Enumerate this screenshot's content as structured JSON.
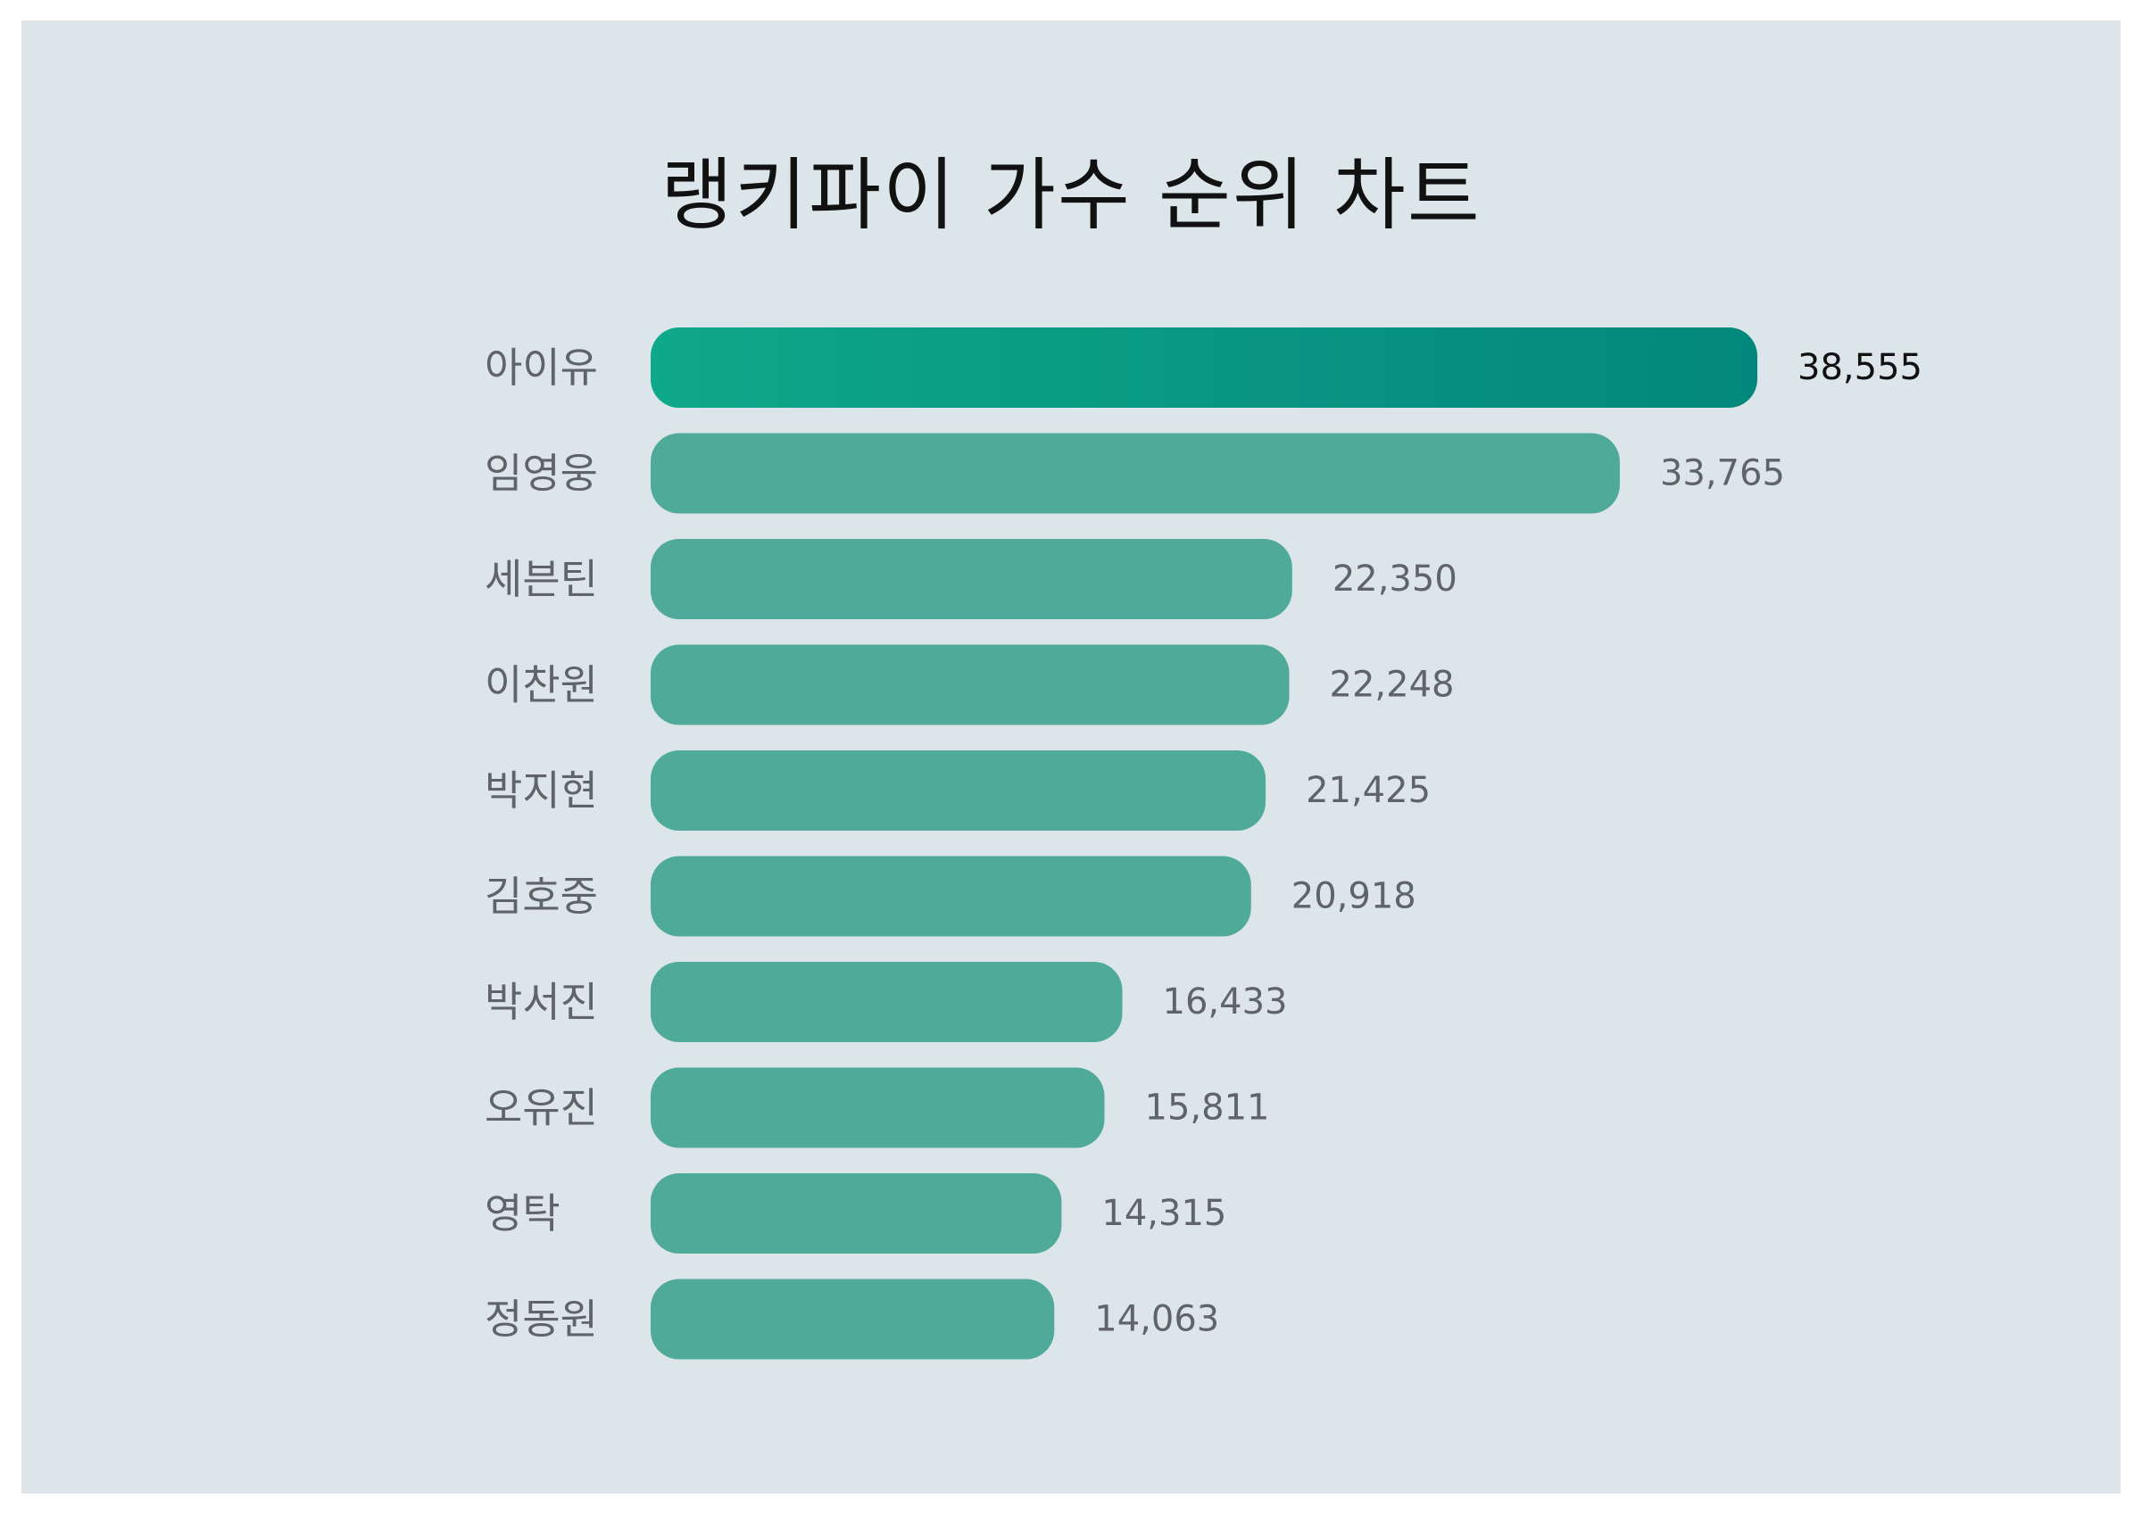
{
  "colors": {
    "background": "#dce6ea",
    "bar": "#50aa99",
    "bar_top_start": "#0ea88a",
    "bar_top_end": "#03877c",
    "label": "#5f6466",
    "top_value": "#111111"
  },
  "chart_data": {
    "type": "bar",
    "orientation": "horizontal",
    "title": "랭키파이 가수 순위 차트",
    "xlabel": "",
    "ylabel": "",
    "grid": false,
    "legend": "none",
    "categories": [
      "아이유",
      "임영웅",
      "세븐틴",
      "이찬원",
      "박지현",
      "김호중",
      "박서진",
      "오유진",
      "영탁",
      "정동원"
    ],
    "values": [
      38555,
      33765,
      22350,
      22248,
      21425,
      20918,
      16433,
      15811,
      14315,
      14063
    ],
    "value_labels": [
      "38,555",
      "33,765",
      "22,350",
      "22,248",
      "21,425",
      "20,918",
      "16,433",
      "15,811",
      "14,315",
      "14,063"
    ],
    "xlim": [
      0,
      38555
    ]
  }
}
